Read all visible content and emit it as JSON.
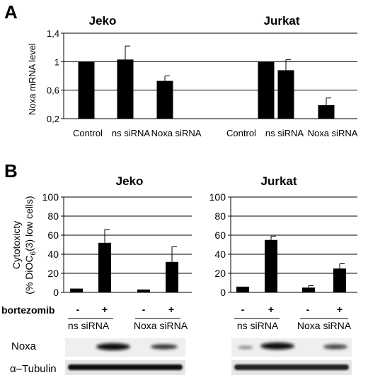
{
  "panel_a": {
    "letter": "A",
    "ylabel": "Noxa mRNA level",
    "yticks": [
      "0,2",
      "0,6",
      "1",
      "1,4"
    ],
    "groups": [
      {
        "title": "Jeko",
        "categories": [
          "Control",
          "ns siRNA",
          "Noxa siRNA"
        ],
        "values": [
          1.0,
          1.03,
          0.73
        ],
        "errors": [
          0,
          0.19,
          0.07
        ]
      },
      {
        "title": "Jurkat",
        "categories": [
          "Control",
          "ns siRNA",
          "Noxa siRNA"
        ],
        "values": [
          1.0,
          0.88,
          0.39
        ],
        "errors": [
          0,
          0.15,
          0.1
        ]
      }
    ]
  },
  "panel_b": {
    "letter": "B",
    "ylabel_line1": "Cytotoxicty",
    "ylabel_line2_pre": "(% DiOC",
    "ylabel_line2_sub": "6",
    "ylabel_line2_post": "(3) low  cells)",
    "yticks": [
      "0",
      "20",
      "40",
      "60",
      "80",
      "100"
    ],
    "bortezomib_label": "bortezomib",
    "blot_labels": [
      "Noxa",
      "α–Tubulin"
    ],
    "groups": [
      {
        "title": "Jeko",
        "signs": [
          "-",
          "+",
          "-",
          "+"
        ],
        "siRNA_labels": [
          "ns siRNA",
          "Noxa siRNA"
        ],
        "values": [
          4,
          52,
          3,
          32
        ],
        "errors": [
          0,
          14,
          0,
          16
        ]
      },
      {
        "title": "Jurkat",
        "signs": [
          "-",
          "+",
          "-",
          "+"
        ],
        "siRNA_labels": [
          "ns siRNA",
          "Noxa siRNA"
        ],
        "values": [
          6,
          55,
          5,
          25
        ],
        "errors": [
          0,
          4,
          2,
          5
        ]
      }
    ]
  },
  "chart_data": [
    {
      "type": "bar",
      "ylabel": "Noxa mRNA level",
      "ylim": [
        0.2,
        1.4
      ],
      "yticks": [
        0.2,
        0.6,
        1.0,
        1.4
      ],
      "grid": true,
      "groups": [
        {
          "title": "Jeko",
          "categories": [
            "Control",
            "ns siRNA",
            "Noxa siRNA"
          ],
          "values": [
            1.0,
            1.03,
            0.73
          ],
          "errors": [
            0,
            0.19,
            0.07
          ]
        },
        {
          "title": "Jurkat",
          "categories": [
            "Control",
            "ns siRNA",
            "Noxa siRNA"
          ],
          "values": [
            1.0,
            0.88,
            0.39
          ],
          "errors": [
            0,
            0.15,
            0.1
          ]
        }
      ]
    },
    {
      "type": "bar",
      "title": "Jeko",
      "ylabel": "Cytotoxicty (% DiOC6(3) low cells)",
      "ylim": [
        0,
        100
      ],
      "grid": true,
      "categories": [
        "ns siRNA -",
        "ns siRNA +",
        "Noxa siRNA -",
        "Noxa siRNA +"
      ],
      "values": [
        4,
        52,
        3,
        32
      ],
      "errors": [
        0,
        14,
        0,
        16
      ]
    },
    {
      "type": "bar",
      "title": "Jurkat",
      "ylim": [
        0,
        100
      ],
      "grid": true,
      "categories": [
        "ns siRNA -",
        "ns siRNA +",
        "Noxa siRNA -",
        "Noxa siRNA +"
      ],
      "values": [
        6,
        55,
        5,
        25
      ],
      "errors": [
        0,
        4,
        2,
        5
      ]
    }
  ]
}
